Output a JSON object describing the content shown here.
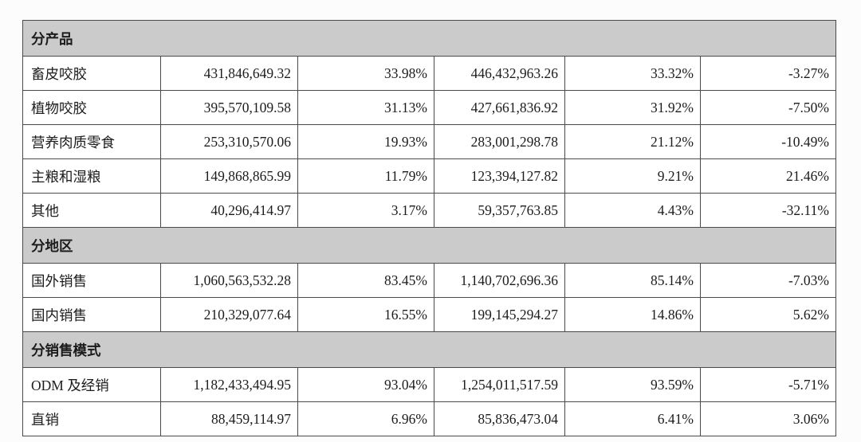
{
  "colors": {
    "page_bg": "#fcfcfc",
    "border": "#4a4a4a",
    "section_bg": "#cbcbcb",
    "text": "#1c1c1c"
  },
  "table": {
    "sections": [
      {
        "header": "分产品",
        "rows": [
          {
            "label": "畜皮咬胶",
            "cells": [
              "431,846,649.32",
              "33.98%",
              "446,432,963.26",
              "33.32%",
              "-3.27%"
            ]
          },
          {
            "label": "植物咬胶",
            "cells": [
              "395,570,109.58",
              "31.13%",
              "427,661,836.92",
              "31.92%",
              "-7.50%"
            ]
          },
          {
            "label": "营养肉质零食",
            "cells": [
              "253,310,570.06",
              "19.93%",
              "283,001,298.78",
              "21.12%",
              "-10.49%"
            ]
          },
          {
            "label": "主粮和湿粮",
            "cells": [
              "149,868,865.99",
              "11.79%",
              "123,394,127.82",
              "9.21%",
              "21.46%"
            ]
          },
          {
            "label": "其他",
            "cells": [
              "40,296,414.97",
              "3.17%",
              "59,357,763.85",
              "4.43%",
              "-32.11%"
            ]
          }
        ]
      },
      {
        "header": "分地区",
        "rows": [
          {
            "label": "国外销售",
            "cells": [
              "1,060,563,532.28",
              "83.45%",
              "1,140,702,696.36",
              "85.14%",
              "-7.03%"
            ]
          },
          {
            "label": "国内销售",
            "cells": [
              "210,329,077.64",
              "16.55%",
              "199,145,294.27",
              "14.86%",
              "5.62%"
            ]
          }
        ]
      },
      {
        "header": "分销售模式",
        "rows": [
          {
            "label": "ODM 及经销",
            "cells": [
              "1,182,433,494.95",
              "93.04%",
              "1,254,011,517.59",
              "93.59%",
              "-5.71%"
            ]
          },
          {
            "label": "直销",
            "cells": [
              "88,459,114.97",
              "6.96%",
              "85,836,473.04",
              "6.41%",
              "3.06%"
            ]
          }
        ]
      }
    ]
  }
}
